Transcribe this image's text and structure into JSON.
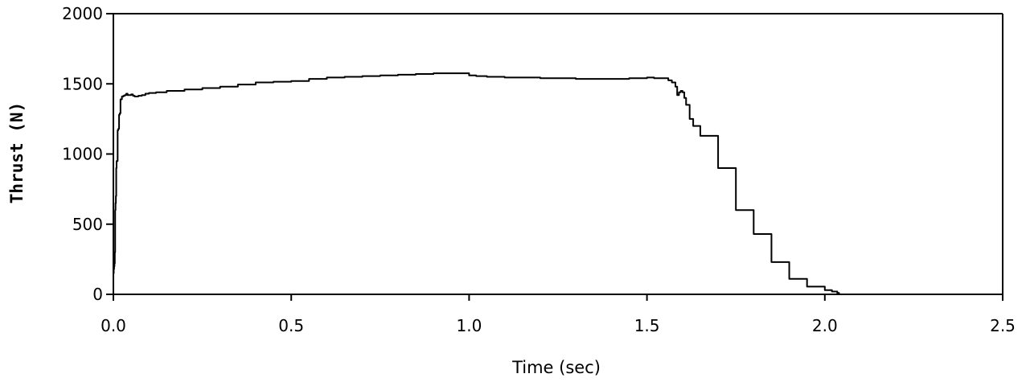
{
  "chart_data": {
    "type": "line",
    "title": "",
    "xlabel": "Time (sec)",
    "ylabel": "Thrust (N)",
    "xlim": [
      0.0,
      2.5
    ],
    "ylim": [
      0,
      2000
    ],
    "x_ticks": [
      0.0,
      0.5,
      1.0,
      1.5,
      2.0,
      2.5
    ],
    "x_tick_labels": [
      "0.0",
      "0.5",
      "1.0",
      "1.5",
      "2.0",
      "2.5"
    ],
    "y_ticks": [
      0,
      500,
      1000,
      1500,
      2000
    ],
    "y_tick_labels": [
      "0",
      "500",
      "1000",
      "1500",
      "2000"
    ],
    "grid": false,
    "legend": "none",
    "line_color": "#000000",
    "series": [
      {
        "x": [
          0.0,
          0.001,
          0.002,
          0.003,
          0.004,
          0.005,
          0.006,
          0.007,
          0.008,
          0.009,
          0.01,
          0.012,
          0.014,
          0.016,
          0.018,
          0.02,
          0.024,
          0.028,
          0.032,
          0.036,
          0.04,
          0.045,
          0.05,
          0.055,
          0.06,
          0.065,
          0.07,
          0.075,
          0.08,
          0.09,
          0.1,
          0.12,
          0.15,
          0.2,
          0.25,
          0.3,
          0.35,
          0.4,
          0.45,
          0.5,
          0.55,
          0.6,
          0.65,
          0.7,
          0.75,
          0.8,
          0.85,
          0.9,
          0.95,
          1.0,
          1.02,
          1.05,
          1.1,
          1.2,
          1.3,
          1.4,
          1.45,
          1.5,
          1.52,
          1.54,
          1.56,
          1.57,
          1.58,
          1.585,
          1.59,
          1.595,
          1.6,
          1.605,
          1.61,
          1.62,
          1.63,
          1.65,
          1.7,
          1.75,
          1.8,
          1.85,
          1.9,
          1.95,
          2.0,
          2.02,
          2.035,
          2.04
        ],
        "y": [
          150,
          180,
          200,
          220,
          300,
          600,
          650,
          700,
          900,
          950,
          950,
          1170,
          1180,
          1280,
          1290,
          1390,
          1410,
          1415,
          1420,
          1430,
          1420,
          1420,
          1425,
          1415,
          1410,
          1410,
          1415,
          1415,
          1420,
          1430,
          1435,
          1440,
          1450,
          1460,
          1470,
          1480,
          1495,
          1510,
          1515,
          1520,
          1535,
          1545,
          1550,
          1555,
          1560,
          1565,
          1570,
          1575,
          1575,
          1560,
          1555,
          1550,
          1545,
          1540,
          1535,
          1535,
          1540,
          1545,
          1540,
          1540,
          1525,
          1510,
          1480,
          1420,
          1440,
          1450,
          1440,
          1400,
          1350,
          1250,
          1200,
          1130,
          900,
          600,
          430,
          230,
          110,
          55,
          30,
          20,
          10,
          5
        ]
      }
    ]
  }
}
